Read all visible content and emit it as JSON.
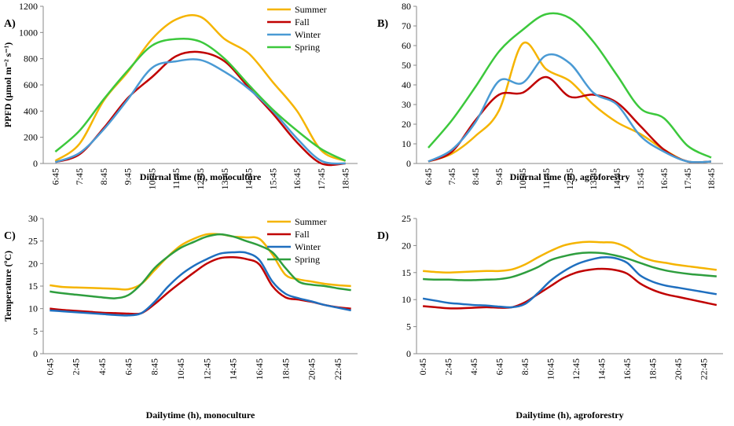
{
  "chart_data": [
    {
      "type": "line",
      "label": "A)",
      "x_label": "Diurnal time (h), monoculture",
      "y_label": "PPFD (µmol m⁻² s⁻¹)",
      "legend": "upper right",
      "categories": [
        "6:45",
        "7:45",
        "8:45",
        "9:45",
        "10:45",
        "11:45",
        "12:45",
        "13:45",
        "14:45",
        "15:45",
        "16:45",
        "17:45",
        "18:45"
      ],
      "ylim": [
        0,
        1200
      ],
      "yticks": [
        0,
        200,
        400,
        600,
        800,
        1000,
        1200
      ],
      "series": [
        {
          "name": "Summer",
          "color": "#f5b400",
          "values": [
            20,
            150,
            480,
            700,
            950,
            1100,
            1120,
            950,
            840,
            620,
            400,
            100,
            20
          ]
        },
        {
          "name": "Fall",
          "color": "#c00000",
          "values": [
            10,
            70,
            270,
            500,
            660,
            820,
            850,
            780,
            580,
            380,
            160,
            0,
            0
          ]
        },
        {
          "name": "Winter",
          "color": "#4a9ad4",
          "values": [
            10,
            80,
            260,
            490,
            730,
            780,
            790,
            700,
            570,
            400,
            190,
            20,
            0
          ]
        },
        {
          "name": "Spring",
          "color": "#3cc83c",
          "values": [
            90,
            250,
            490,
            710,
            900,
            950,
            930,
            800,
            600,
            410,
            250,
            110,
            20
          ]
        }
      ]
    },
    {
      "type": "line",
      "label": "B)",
      "x_label": "Diurnal time (h), agroforestry",
      "categories": [
        "6:45",
        "7:45",
        "8:45",
        "9:45",
        "10:45",
        "11:45",
        "12:45",
        "13:45",
        "14:45",
        "15:45",
        "16:45",
        "17:45",
        "18:45"
      ],
      "ylim": [
        0,
        80
      ],
      "yticks": [
        0,
        10,
        20,
        30,
        40,
        50,
        60,
        70,
        80
      ],
      "series": [
        {
          "name": "Summer",
          "color": "#f5b400",
          "values": [
            1,
            5,
            14,
            27,
            61,
            48,
            42,
            30,
            21,
            15,
            7,
            1,
            1
          ]
        },
        {
          "name": "Fall",
          "color": "#c00000",
          "values": [
            1,
            6,
            22,
            35,
            36,
            44,
            34,
            35,
            31,
            19,
            7,
            1,
            1
          ]
        },
        {
          "name": "Winter",
          "color": "#4a9ad4",
          "values": [
            1,
            7,
            21,
            42,
            41,
            55,
            51,
            36,
            30,
            14,
            6,
            1,
            1
          ]
        },
        {
          "name": "Spring",
          "color": "#3cc83c",
          "values": [
            8,
            22,
            39,
            57,
            68,
            76,
            74,
            62,
            45,
            28,
            23,
            9,
            3
          ]
        }
      ]
    },
    {
      "type": "line",
      "label": "C)",
      "x_label": "Dailytime (h), monoculture",
      "y_label": "Temperature (ºC)",
      "legend": "upper right",
      "categories": [
        "0:45",
        null,
        "2:45",
        null,
        "4:45",
        null,
        "6:45",
        null,
        "8:45",
        null,
        "10:45",
        null,
        "12:45",
        null,
        "14:45",
        null,
        "16:45",
        null,
        "18:45",
        null,
        "20:45",
        null,
        "22:45",
        null
      ],
      "ylim": [
        0,
        30
      ],
      "yticks": [
        0,
        5,
        10,
        15,
        20,
        25,
        30
      ],
      "series": [
        {
          "name": "Summer",
          "color": "#f5b400",
          "values": [
            15.2,
            14.8,
            14.7,
            14.6,
            14.5,
            14.4,
            14.3,
            15.5,
            18.5,
            21.5,
            24,
            25.5,
            26.5,
            26.5,
            26,
            25.8,
            25.5,
            22,
            17.5,
            16.5,
            16,
            15.5,
            15.2,
            15
          ]
        },
        {
          "name": "Fall",
          "color": "#c00000",
          "values": [
            10,
            9.7,
            9.5,
            9.3,
            9.1,
            9,
            8.9,
            9,
            11,
            13.5,
            15.8,
            18,
            20,
            21.2,
            21.4,
            21,
            19.8,
            15,
            12.5,
            12,
            11.5,
            10.8,
            10.3,
            10
          ]
        },
        {
          "name": "Winter",
          "color": "#1f6fbf",
          "values": [
            9.6,
            9.4,
            9.2,
            9,
            8.8,
            8.6,
            8.5,
            9,
            11.5,
            14.8,
            17.5,
            19.5,
            21,
            22.2,
            22.5,
            22.4,
            20.8,
            16,
            13.3,
            12.3,
            11.6,
            10.8,
            10.2,
            9.6
          ]
        },
        {
          "name": "Spring",
          "color": "#2e9e3e",
          "values": [
            13.8,
            13.4,
            13.1,
            12.8,
            12.5,
            12.3,
            13,
            15.5,
            19,
            21.5,
            23.5,
            24.8,
            26,
            26.5,
            26,
            25,
            24,
            22.5,
            19,
            16,
            15.3,
            15,
            14.5,
            14.1
          ]
        }
      ]
    },
    {
      "type": "line",
      "label": "D)",
      "x_label": "Dailytime (h), agroforestry",
      "categories": [
        "0:45",
        null,
        "2:45",
        null,
        "4:45",
        null,
        "6:45",
        null,
        "8:45",
        null,
        "10:45",
        null,
        "12:45",
        null,
        "14:45",
        null,
        "16:45",
        null,
        "18:45",
        null,
        "20:45",
        null,
        "22:45",
        null
      ],
      "ylim": [
        0,
        25
      ],
      "yticks": [
        0,
        5,
        10,
        15,
        20,
        25
      ],
      "series": [
        {
          "name": "Summer",
          "color": "#f5b400",
          "values": [
            15.3,
            15.1,
            15,
            15.1,
            15.2,
            15.3,
            15.3,
            15.6,
            16.5,
            17.8,
            19,
            20,
            20.5,
            20.7,
            20.6,
            20.5,
            19.6,
            18,
            17.2,
            16.8,
            16.4,
            16.1,
            15.8,
            15.5
          ]
        },
        {
          "name": "Fall",
          "color": "#c00000",
          "values": [
            8.8,
            8.6,
            8.4,
            8.4,
            8.5,
            8.6,
            8.5,
            8.6,
            9.5,
            11,
            12.5,
            14,
            15,
            15.5,
            15.7,
            15.5,
            14.8,
            13,
            11.8,
            11,
            10.5,
            10,
            9.5,
            9
          ]
        },
        {
          "name": "Winter",
          "color": "#1f6fbf",
          "values": [
            10.2,
            9.8,
            9.4,
            9.2,
            9,
            8.9,
            8.7,
            8.6,
            9.2,
            11.2,
            13.5,
            15.2,
            16.5,
            17.3,
            17.8,
            17.7,
            16.8,
            14.5,
            13.3,
            12.6,
            12.2,
            11.8,
            11.4,
            11
          ]
        },
        {
          "name": "Spring",
          "color": "#2e9e3e",
          "values": [
            13.8,
            13.7,
            13.7,
            13.6,
            13.6,
            13.7,
            13.8,
            14.2,
            15,
            16,
            17.3,
            18,
            18.5,
            18.7,
            18.6,
            18.2,
            17.6,
            16.8,
            16,
            15.4,
            15,
            14.7,
            14.5,
            14.3
          ]
        }
      ]
    }
  ]
}
